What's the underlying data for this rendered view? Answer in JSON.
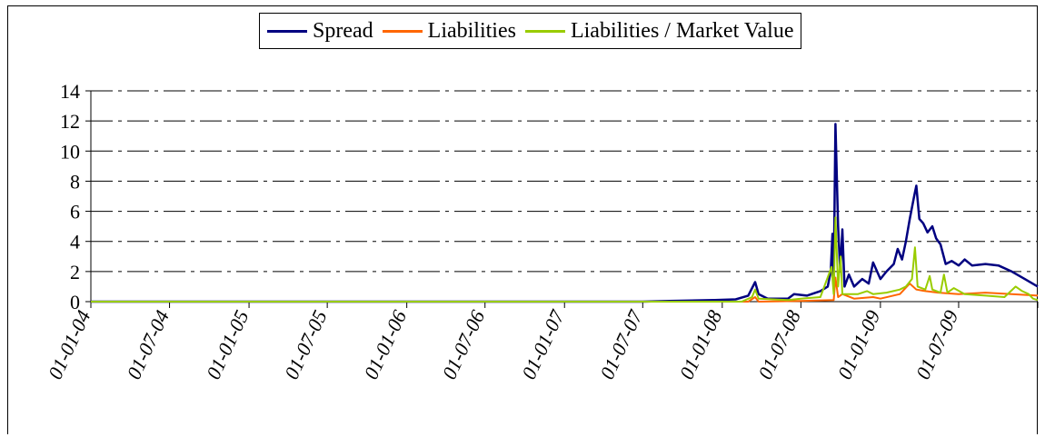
{
  "chart_data": {
    "type": "line",
    "title": "",
    "xlabel": "",
    "ylabel": "",
    "ylim": [
      0,
      14
    ],
    "yticks": [
      0,
      2,
      4,
      6,
      8,
      10,
      12,
      14
    ],
    "ytick_labels": [
      "0",
      "2",
      "4",
      "6",
      "8",
      "10",
      "12",
      "14"
    ],
    "grid": "horizontal dashed",
    "legend_position": "top",
    "x_range": [
      "2004-01-01",
      "2009-12-31"
    ],
    "xtick_labels": [
      "01-01-04",
      "01-07-04",
      "01-01-05",
      "01-07-05",
      "01-01-06",
      "01-07-06",
      "01-01-07",
      "01-07-07",
      "01-01-08",
      "01-07-08",
      "01-01-09",
      "01-07-09"
    ],
    "xtick_dates": [
      "2004-01-01",
      "2004-07-01",
      "2005-01-01",
      "2005-07-01",
      "2006-01-01",
      "2006-07-01",
      "2007-01-01",
      "2007-07-01",
      "2008-01-01",
      "2008-07-01",
      "2009-01-01",
      "2009-07-01"
    ],
    "series": [
      {
        "name": "Spread",
        "color": "#000080",
        "points": [
          [
            "2004-01-01",
            0
          ],
          [
            "2007-07-01",
            0
          ],
          [
            "2007-09-01",
            0.05
          ],
          [
            "2007-12-15",
            0.1
          ],
          [
            "2008-02-01",
            0.15
          ],
          [
            "2008-03-01",
            0.4
          ],
          [
            "2008-03-17",
            1.3
          ],
          [
            "2008-03-25",
            0.5
          ],
          [
            "2008-04-15",
            0.2
          ],
          [
            "2008-06-01",
            0.2
          ],
          [
            "2008-06-15",
            0.5
          ],
          [
            "2008-07-15",
            0.4
          ],
          [
            "2008-08-15",
            0.7
          ],
          [
            "2008-09-01",
            1.0
          ],
          [
            "2008-09-08",
            2.0
          ],
          [
            "2008-09-12",
            4.5
          ],
          [
            "2008-09-15",
            1.5
          ],
          [
            "2008-09-19",
            11.8
          ],
          [
            "2008-09-25",
            5.0
          ],
          [
            "2008-09-30",
            2.0
          ],
          [
            "2008-10-05",
            4.8
          ],
          [
            "2008-10-10",
            1.0
          ],
          [
            "2008-10-20",
            1.8
          ],
          [
            "2008-11-01",
            1.0
          ],
          [
            "2008-11-20",
            1.5
          ],
          [
            "2008-12-05",
            1.2
          ],
          [
            "2008-12-15",
            2.6
          ],
          [
            "2009-01-01",
            1.5
          ],
          [
            "2009-01-15",
            2.0
          ],
          [
            "2009-02-01",
            2.5
          ],
          [
            "2009-02-10",
            3.5
          ],
          [
            "2009-02-20",
            2.8
          ],
          [
            "2009-03-01",
            4.0
          ],
          [
            "2009-03-10",
            5.5
          ],
          [
            "2009-03-20",
            7.0
          ],
          [
            "2009-03-25",
            7.7
          ],
          [
            "2009-04-01",
            5.5
          ],
          [
            "2009-04-10",
            5.2
          ],
          [
            "2009-04-20",
            4.6
          ],
          [
            "2009-05-01",
            5.0
          ],
          [
            "2009-05-10",
            4.2
          ],
          [
            "2009-05-20",
            3.8
          ],
          [
            "2009-06-01",
            2.5
          ],
          [
            "2009-06-15",
            2.7
          ],
          [
            "2009-07-01",
            2.4
          ],
          [
            "2009-07-15",
            2.8
          ],
          [
            "2009-08-01",
            2.4
          ],
          [
            "2009-09-01",
            2.5
          ],
          [
            "2009-10-01",
            2.4
          ],
          [
            "2009-11-01",
            2.0
          ],
          [
            "2009-12-01",
            1.5
          ],
          [
            "2009-12-31",
            1.0
          ]
        ]
      },
      {
        "name": "Liabilities",
        "color": "#FF6600",
        "points": [
          [
            "2004-01-01",
            0
          ],
          [
            "2008-03-01",
            0
          ],
          [
            "2008-03-17",
            0.3
          ],
          [
            "2008-03-25",
            0
          ],
          [
            "2008-07-01",
            0.05
          ],
          [
            "2008-09-15",
            0.1
          ],
          [
            "2008-09-19",
            1.6
          ],
          [
            "2008-09-25",
            0.3
          ],
          [
            "2008-10-05",
            0.5
          ],
          [
            "2008-11-01",
            0.2
          ],
          [
            "2008-12-15",
            0.3
          ],
          [
            "2009-01-01",
            0.2
          ],
          [
            "2009-02-15",
            0.5
          ],
          [
            "2009-03-10",
            1.2
          ],
          [
            "2009-03-25",
            0.8
          ],
          [
            "2009-04-15",
            0.7
          ],
          [
            "2009-05-15",
            0.6
          ],
          [
            "2009-07-01",
            0.5
          ],
          [
            "2009-09-01",
            0.6
          ],
          [
            "2009-11-01",
            0.5
          ],
          [
            "2009-12-31",
            0.4
          ]
        ]
      },
      {
        "name": "Liabilities / Market Value",
        "color": "#99CC00",
        "points": [
          [
            "2004-01-01",
            0
          ],
          [
            "2008-02-15",
            0
          ],
          [
            "2008-03-10",
            0.3
          ],
          [
            "2008-03-17",
            0.8
          ],
          [
            "2008-03-25",
            0.2
          ],
          [
            "2008-06-01",
            0.1
          ],
          [
            "2008-07-01",
            0.2
          ],
          [
            "2008-08-15",
            0.3
          ],
          [
            "2008-09-10",
            2.3
          ],
          [
            "2008-09-15",
            0.5
          ],
          [
            "2008-09-19",
            5.6
          ],
          [
            "2008-09-25",
            1.0
          ],
          [
            "2008-10-01",
            3.0
          ],
          [
            "2008-10-05",
            0.5
          ],
          [
            "2008-10-20",
            0.5
          ],
          [
            "2008-11-10",
            0.5
          ],
          [
            "2008-12-01",
            0.7
          ],
          [
            "2008-12-15",
            0.5
          ],
          [
            "2009-01-15",
            0.6
          ],
          [
            "2009-02-15",
            0.8
          ],
          [
            "2009-03-01",
            1.0
          ],
          [
            "2009-03-15",
            1.5
          ],
          [
            "2009-03-22",
            3.6
          ],
          [
            "2009-03-28",
            1.0
          ],
          [
            "2009-04-15",
            0.8
          ],
          [
            "2009-04-25",
            1.7
          ],
          [
            "2009-05-01",
            0.8
          ],
          [
            "2009-05-20",
            0.6
          ],
          [
            "2009-05-28",
            1.8
          ],
          [
            "2009-06-05",
            0.6
          ],
          [
            "2009-06-20",
            0.9
          ],
          [
            "2009-07-15",
            0.5
          ],
          [
            "2009-09-01",
            0.4
          ],
          [
            "2009-10-15",
            0.3
          ],
          [
            "2009-11-10",
            1.0
          ],
          [
            "2009-11-25",
            0.7
          ],
          [
            "2009-12-10",
            0.5
          ],
          [
            "2009-12-20",
            0.2
          ],
          [
            "2009-12-31",
            0.1
          ]
        ]
      }
    ]
  }
}
